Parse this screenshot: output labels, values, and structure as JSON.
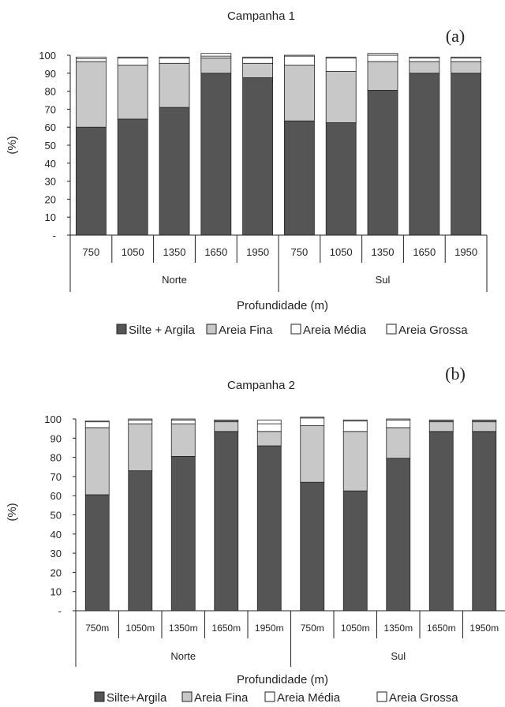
{
  "colors": {
    "silte_argila": "#555555",
    "areia_fina": "#c8c8c8",
    "areia_media": "#ffffff",
    "areia_grossa": "#ffffff",
    "stroke": "#222222"
  },
  "chart_data": [
    {
      "type": "bar",
      "stacked": true,
      "title": "Campanha 1",
      "panel_label": "(a)",
      "xlabel": "Profundidade (m)",
      "ylabel": "(%)",
      "ylim": [
        0,
        100
      ],
      "yticks": [
        "-",
        "10",
        "20",
        "30",
        "40",
        "50",
        "60",
        "70",
        "80",
        "90",
        "100"
      ],
      "categories": [
        "750",
        "1050",
        "1350",
        "1650",
        "1950",
        "750",
        "1050",
        "1350",
        "1650",
        "1950"
      ],
      "groups": [
        "Norte",
        "Sul"
      ],
      "legend_position": "bottom",
      "series": [
        {
          "name": "Silte + Argila",
          "values": [
            60,
            64.5,
            71,
            90,
            87.5,
            63.5,
            62.5,
            80.5,
            90,
            90
          ]
        },
        {
          "name": "Areia Fina",
          "values": [
            36.5,
            30,
            24.5,
            8.5,
            8,
            31,
            28.5,
            16,
            6.5,
            6.5
          ]
        },
        {
          "name": "Areia Média",
          "values": [
            1.5,
            4,
            3,
            1,
            3,
            5,
            7.5,
            3.5,
            2,
            2
          ]
        },
        {
          "name": "Areia Grossa",
          "values": [
            1,
            0.5,
            0.5,
            1.5,
            0.5,
            0.5,
            0.5,
            1,
            0.5,
            0.5
          ]
        }
      ]
    },
    {
      "type": "bar",
      "stacked": true,
      "title": "Campanha 2",
      "panel_label": "(b)",
      "xlabel": "Profundidade (m)",
      "ylabel": "(%)",
      "ylim": [
        0,
        100
      ],
      "yticks": [
        "-",
        "10",
        "20",
        "30",
        "40",
        "50",
        "60",
        "70",
        "80",
        "90",
        "100"
      ],
      "categories": [
        "750m",
        "1050m",
        "1350m",
        "1650m",
        "1950m",
        "750m",
        "1050m",
        "1350m",
        "1650m",
        "1950m"
      ],
      "groups": [
        "Norte",
        "Sul"
      ],
      "legend_position": "bottom",
      "series": [
        {
          "name": "Silte+Argila",
          "values": [
            60.5,
            73,
            80.5,
            93.5,
            86,
            67,
            62.5,
            79.5,
            93.5,
            93.5
          ]
        },
        {
          "name": "Areia Fina",
          "values": [
            35,
            24.5,
            17,
            5,
            7.5,
            29.5,
            31,
            16,
            5,
            5
          ]
        },
        {
          "name": "Areia Média",
          "values": [
            3,
            2,
            2,
            0.5,
            4,
            4,
            5.5,
            4,
            0.5,
            0.5
          ]
        },
        {
          "name": "Areia Grossa",
          "values": [
            0.5,
            0.5,
            0.5,
            0.5,
            2,
            0.5,
            0.5,
            0.5,
            0.5,
            0.5
          ]
        }
      ]
    }
  ]
}
